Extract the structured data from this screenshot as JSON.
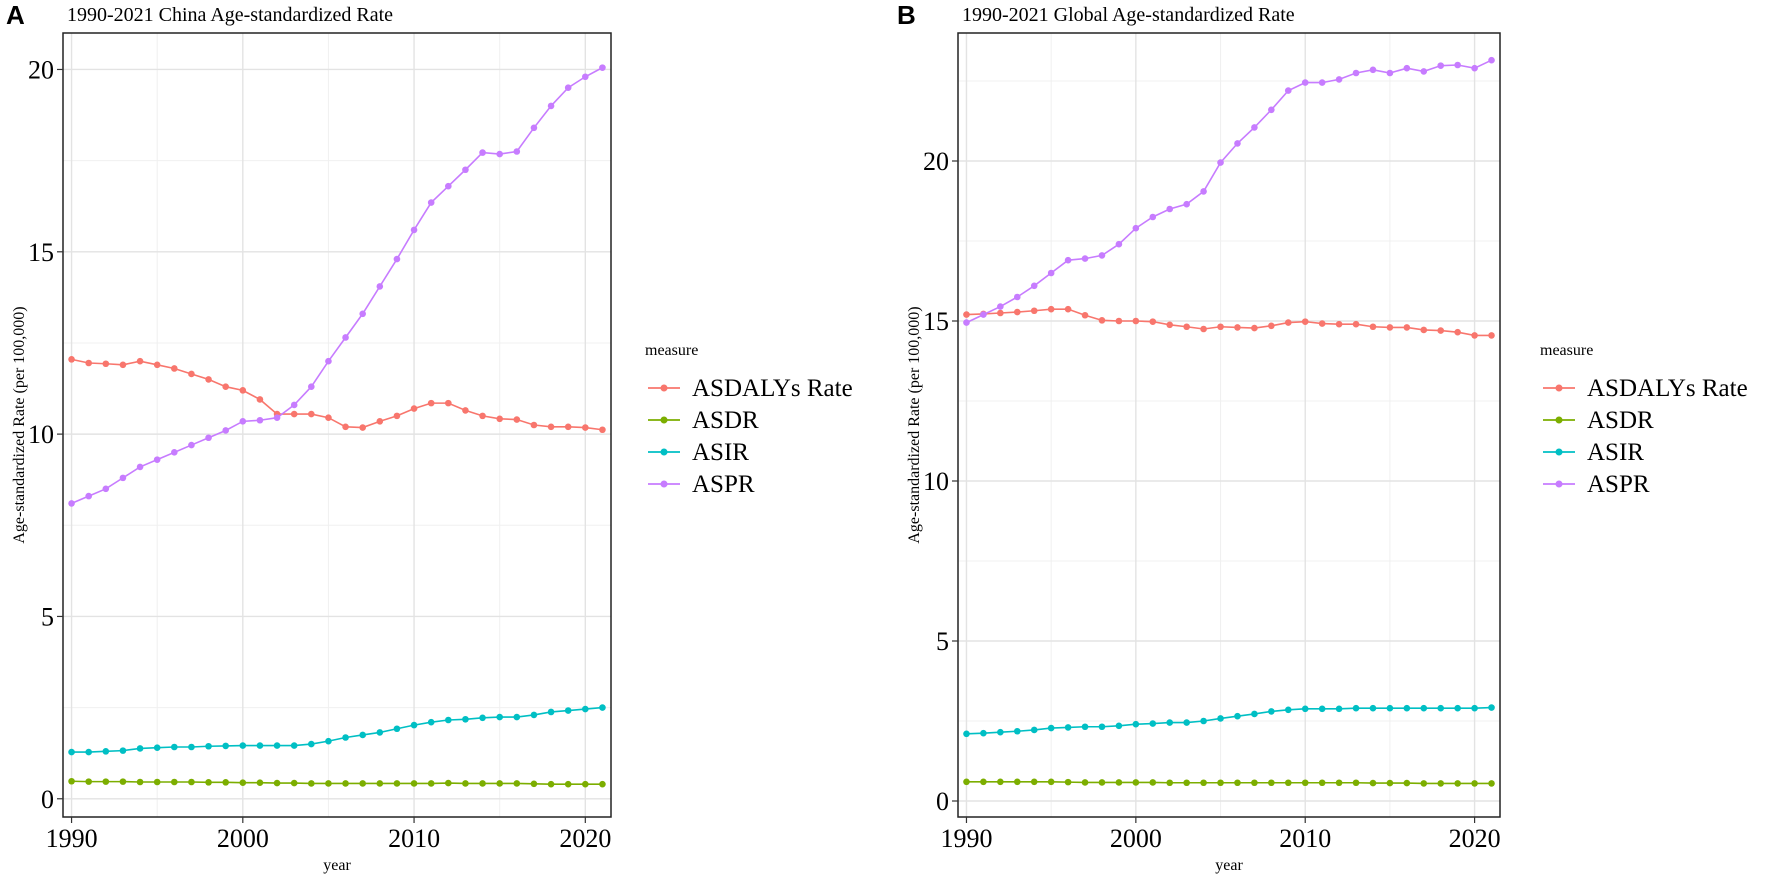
{
  "chart_data": [
    {
      "type": "line",
      "panel_label": "A",
      "title": "1990-2021 China Age-standardized Rate",
      "xlabel": "year",
      "ylabel": "Age-standardized Rate (per 100,000)",
      "xlim": [
        1989.5,
        2021.5
      ],
      "ylim": [
        -0.5,
        21.0
      ],
      "xticks": [
        1990,
        2000,
        2010,
        2020
      ],
      "yticks": [
        0,
        5,
        10,
        15,
        20
      ],
      "grid": true,
      "legend_title": "measure",
      "legend_position": "right",
      "x": [
        1990,
        1991,
        1992,
        1993,
        1994,
        1995,
        1996,
        1997,
        1998,
        1999,
        2000,
        2001,
        2002,
        2003,
        2004,
        2005,
        2006,
        2007,
        2008,
        2009,
        2010,
        2011,
        2012,
        2013,
        2014,
        2015,
        2016,
        2017,
        2018,
        2019,
        2020,
        2021
      ],
      "series": [
        {
          "name": "ASDALYs Rate",
          "color": "#F8766D",
          "values": [
            12.05,
            11.95,
            11.93,
            11.9,
            12.0,
            11.9,
            11.8,
            11.65,
            11.5,
            11.3,
            11.2,
            10.95,
            10.55,
            10.55,
            10.55,
            10.45,
            10.2,
            10.18,
            10.35,
            10.5,
            10.7,
            10.85,
            10.85,
            10.65,
            10.5,
            10.42,
            10.4,
            10.25,
            10.2,
            10.2,
            10.18,
            10.12
          ]
        },
        {
          "name": "ASDR",
          "color": "#7CAE00",
          "values": [
            0.48,
            0.47,
            0.47,
            0.47,
            0.46,
            0.46,
            0.46,
            0.46,
            0.45,
            0.45,
            0.44,
            0.44,
            0.43,
            0.43,
            0.42,
            0.42,
            0.42,
            0.42,
            0.42,
            0.42,
            0.42,
            0.42,
            0.43,
            0.42,
            0.42,
            0.42,
            0.42,
            0.41,
            0.4,
            0.4,
            0.4,
            0.4
          ]
        },
        {
          "name": "ASIR",
          "color": "#00BFC4",
          "values": [
            1.28,
            1.28,
            1.3,
            1.32,
            1.38,
            1.4,
            1.42,
            1.42,
            1.44,
            1.45,
            1.46,
            1.46,
            1.46,
            1.46,
            1.5,
            1.58,
            1.68,
            1.75,
            1.82,
            1.92,
            2.02,
            2.1,
            2.16,
            2.18,
            2.22,
            2.24,
            2.24,
            2.3,
            2.38,
            2.42,
            2.46,
            2.5
          ]
        },
        {
          "name": "ASPR",
          "color": "#C77CFF",
          "values": [
            8.1,
            8.3,
            8.5,
            8.8,
            9.1,
            9.3,
            9.5,
            9.7,
            9.9,
            10.1,
            10.35,
            10.38,
            10.45,
            10.8,
            11.3,
            12.0,
            12.65,
            13.3,
            14.05,
            14.8,
            15.6,
            16.35,
            16.8,
            17.25,
            17.72,
            17.68,
            17.75,
            18.4,
            19.0,
            19.5,
            19.8,
            20.05
          ]
        }
      ]
    },
    {
      "type": "line",
      "panel_label": "B",
      "title": "1990-2021 Global Age-standardized Rate",
      "xlabel": "year",
      "ylabel": "Age-standardized Rate (per 100,000)",
      "xlim": [
        1989.5,
        2021.5
      ],
      "ylim": [
        -0.5,
        24.0
      ],
      "xticks": [
        1990,
        2000,
        2010,
        2020
      ],
      "yticks": [
        0,
        5,
        10,
        15,
        20
      ],
      "grid": true,
      "legend_title": "measure",
      "legend_position": "right",
      "x": [
        1990,
        1991,
        1992,
        1993,
        1994,
        1995,
        1996,
        1997,
        1998,
        1999,
        2000,
        2001,
        2002,
        2003,
        2004,
        2005,
        2006,
        2007,
        2008,
        2009,
        2010,
        2011,
        2012,
        2013,
        2014,
        2015,
        2016,
        2017,
        2018,
        2019,
        2020,
        2021
      ],
      "series": [
        {
          "name": "ASDALYs Rate",
          "color": "#F8766D",
          "values": [
            15.2,
            15.22,
            15.25,
            15.28,
            15.32,
            15.37,
            15.37,
            15.18,
            15.02,
            15.0,
            15.0,
            14.98,
            14.88,
            14.82,
            14.75,
            14.82,
            14.8,
            14.78,
            14.85,
            14.95,
            14.98,
            14.92,
            14.9,
            14.9,
            14.82,
            14.8,
            14.8,
            14.72,
            14.7,
            14.65,
            14.55,
            14.55
          ]
        },
        {
          "name": "ASDR",
          "color": "#7CAE00",
          "values": [
            0.6,
            0.6,
            0.6,
            0.6,
            0.6,
            0.6,
            0.59,
            0.58,
            0.58,
            0.58,
            0.58,
            0.58,
            0.57,
            0.57,
            0.57,
            0.57,
            0.57,
            0.57,
            0.57,
            0.57,
            0.57,
            0.57,
            0.57,
            0.57,
            0.56,
            0.56,
            0.56,
            0.55,
            0.55,
            0.55,
            0.55,
            0.55
          ]
        },
        {
          "name": "ASIR",
          "color": "#00BFC4",
          "values": [
            2.1,
            2.12,
            2.15,
            2.18,
            2.22,
            2.28,
            2.3,
            2.32,
            2.32,
            2.35,
            2.4,
            2.42,
            2.45,
            2.45,
            2.5,
            2.58,
            2.65,
            2.72,
            2.8,
            2.85,
            2.88,
            2.88,
            2.88,
            2.9,
            2.9,
            2.9,
            2.9,
            2.9,
            2.9,
            2.9,
            2.9,
            2.92
          ]
        },
        {
          "name": "ASPR",
          "color": "#C77CFF",
          "values": [
            14.95,
            15.2,
            15.45,
            15.75,
            16.1,
            16.5,
            16.9,
            16.95,
            17.05,
            17.4,
            17.9,
            18.25,
            18.5,
            18.65,
            19.05,
            19.95,
            20.55,
            21.05,
            21.6,
            22.2,
            22.45,
            22.45,
            22.55,
            22.75,
            22.85,
            22.75,
            22.9,
            22.8,
            22.98,
            23.0,
            22.9,
            23.15
          ]
        }
      ]
    }
  ]
}
